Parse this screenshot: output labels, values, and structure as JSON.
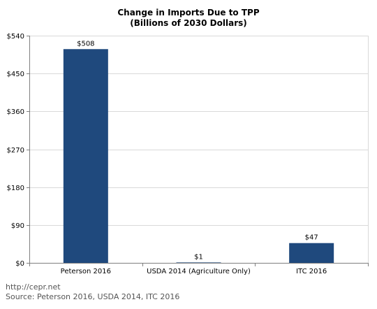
{
  "chart_data": {
    "type": "bar",
    "title": "Change in Imports Due to TPP",
    "subtitle": "(Billions of 2030 Dollars)",
    "categories": [
      "Peterson 2016",
      "USDA 2014 (Agriculture Only)",
      "ITC 2016"
    ],
    "values": [
      508,
      1,
      47
    ],
    "data_labels": [
      "$508",
      "$1",
      "$47"
    ],
    "yticks": [
      0,
      90,
      180,
      270,
      360,
      450,
      540
    ],
    "ytick_labels": [
      "$0",
      "$90",
      "$180",
      "$270",
      "$360",
      "$450",
      "$540"
    ],
    "ylim": [
      0,
      540
    ],
    "grid": true,
    "legend": "none",
    "bar_color": "#1f497d"
  },
  "footer": {
    "url": "http://cepr.net",
    "source": "Source: Peterson 2016, USDA 2014, ITC 2016"
  }
}
